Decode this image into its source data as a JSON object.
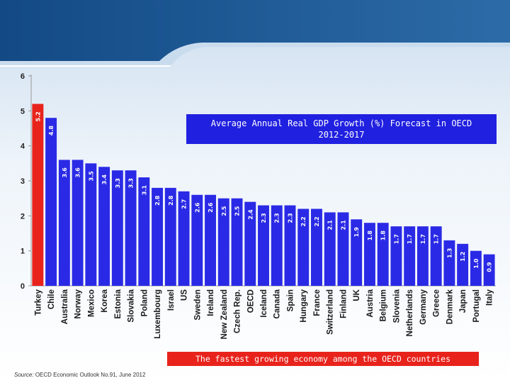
{
  "chart_data": {
    "type": "bar",
    "title": "Average Annual Real GDP Growth (%) Forecast in OECD 2012-2017",
    "categories": [
      "Turkey",
      "Chile",
      "Australia",
      "Norway",
      "Mexico",
      "Korea",
      "Estonia",
      "Slovakia",
      "Poland",
      "Luxembourg",
      "Israel",
      "US",
      "Sweden",
      "Ireland",
      "New Zealand",
      "Czech Rep.",
      "OECD",
      "Iceland",
      "Canada",
      "Spain",
      "Hungary",
      "France",
      "Switzerland",
      "Finland",
      "UK",
      "Austria",
      "Belgium",
      "Slovenia",
      "Netherlands",
      "Germany",
      "Greece",
      "Denmark",
      "Japan",
      "Portugal",
      "Italy"
    ],
    "values": [
      5.2,
      4.8,
      3.6,
      3.6,
      3.5,
      3.4,
      3.3,
      3.3,
      3.1,
      2.8,
      2.8,
      2.7,
      2.6,
      2.6,
      2.5,
      2.5,
      2.4,
      2.3,
      2.3,
      2.3,
      2.2,
      2.2,
      2.1,
      2.1,
      1.9,
      1.8,
      1.8,
      1.7,
      1.7,
      1.7,
      1.7,
      1.3,
      1.2,
      1.0,
      0.9
    ],
    "value_labels": [
      "5.2",
      "4.8",
      "3.6",
      "3.6",
      "3.5",
      "3.4",
      "3.3",
      "3.3",
      "3.1",
      "2.8",
      "2.8",
      "2.7",
      "2.6",
      "2.6",
      "2.5",
      "2.5",
      "2.4",
      "2.3",
      "2.3",
      "2.3",
      "2.2",
      "2.2",
      "2.1",
      "2.1",
      "1.9",
      "1.8",
      "1.8",
      "1.7",
      "1.7",
      "1.7",
      "1.7",
      "1.3",
      "1.2",
      "1.0",
      "0.9"
    ],
    "highlight_index": 0,
    "ylim": [
      0,
      6
    ],
    "yticks": [
      0,
      1,
      2,
      3,
      4,
      5,
      6
    ],
    "xlabel": "",
    "ylabel": "",
    "grid": false,
    "colors": {
      "bar": "#2a2ae6",
      "highlight": "#e8231c",
      "axis": "#999999"
    }
  },
  "title_lines": [
    "Average Annual Real GDP Growth (%) Forecast in OECD",
    "2012-2017"
  ],
  "banner": "The fastest growing economy among the OECD countries",
  "source_label": "Source:",
  "source_text": "OECD Economic Outlook No.91, June 2012",
  "theme": {
    "header_blue": "#1f5b95",
    "header_light": "#c9dcee",
    "panel_bg": "#e7eff8"
  }
}
